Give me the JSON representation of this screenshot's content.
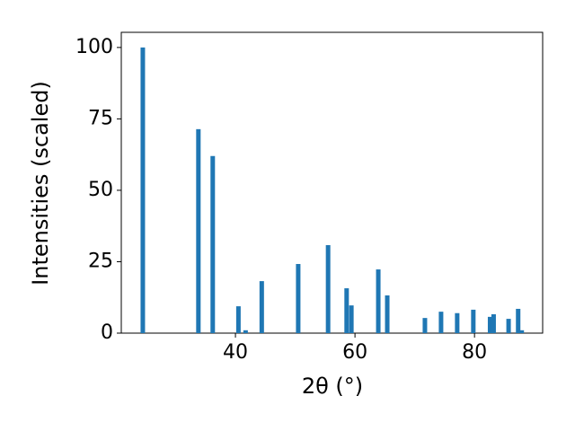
{
  "chart_data": {
    "type": "bar",
    "x": [
      24.5,
      33.8,
      36.2,
      40.5,
      41.7,
      44.4,
      50.5,
      55.5,
      58.6,
      59.4,
      63.9,
      65.4,
      71.7,
      74.4,
      77.1,
      79.8,
      82.6,
      83.2,
      85.7,
      87.3,
      87.9
    ],
    "values": [
      100,
      71.4,
      62,
      9.4,
      1,
      18.2,
      24.2,
      30.8,
      15.7,
      9.7,
      22.3,
      13.2,
      5.3,
      7.5,
      7,
      8.2,
      5.7,
      6.6,
      5,
      8.5,
      1
    ],
    "color": "#1f77b4",
    "xlabel": "2θ (°)",
    "ylabel": "Intensities (scaled)",
    "xlim": [
      20.9,
      91.4
    ],
    "xticks": [
      40,
      60,
      80
    ],
    "ylim": [
      0,
      105.3
    ],
    "yticks": [
      0,
      25,
      50,
      75,
      100
    ],
    "grid": false
  }
}
